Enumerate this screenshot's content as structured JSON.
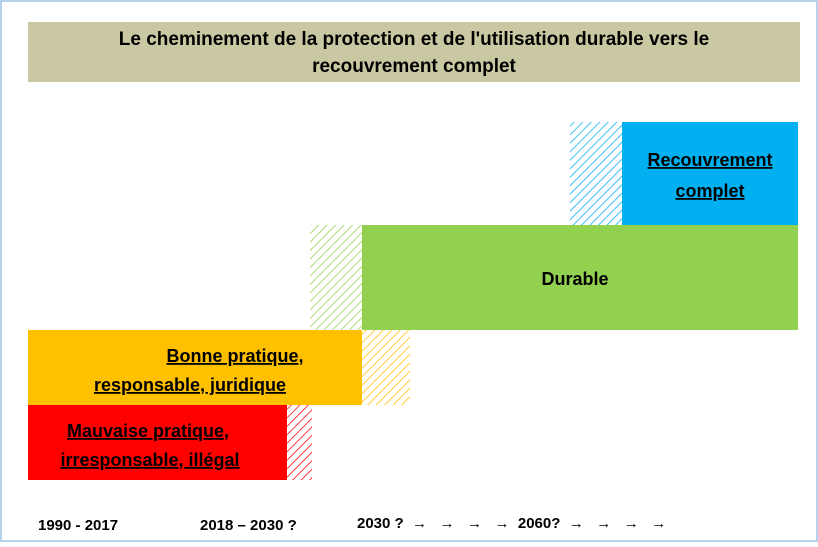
{
  "title": [
    "Le cheminement de la protection et de l'utilisation durable vers le",
    "recouvrement complet"
  ],
  "blocks": [
    {
      "lines": [
        "Recouvrement",
        "complet"
      ]
    },
    {
      "lines": [
        "Durable"
      ]
    },
    {
      "lines": [
        "Bonne pratique,",
        "responsable, juridique"
      ]
    },
    {
      "lines": [
        "Mauvaise pratique,",
        "irresponsable, illégal"
      ]
    }
  ],
  "timeline": [
    "1990 - 2017",
    "2018 – 2030 ?",
    "2030 ?  →   →   →   →  2060?  →   →   →   →"
  ]
}
